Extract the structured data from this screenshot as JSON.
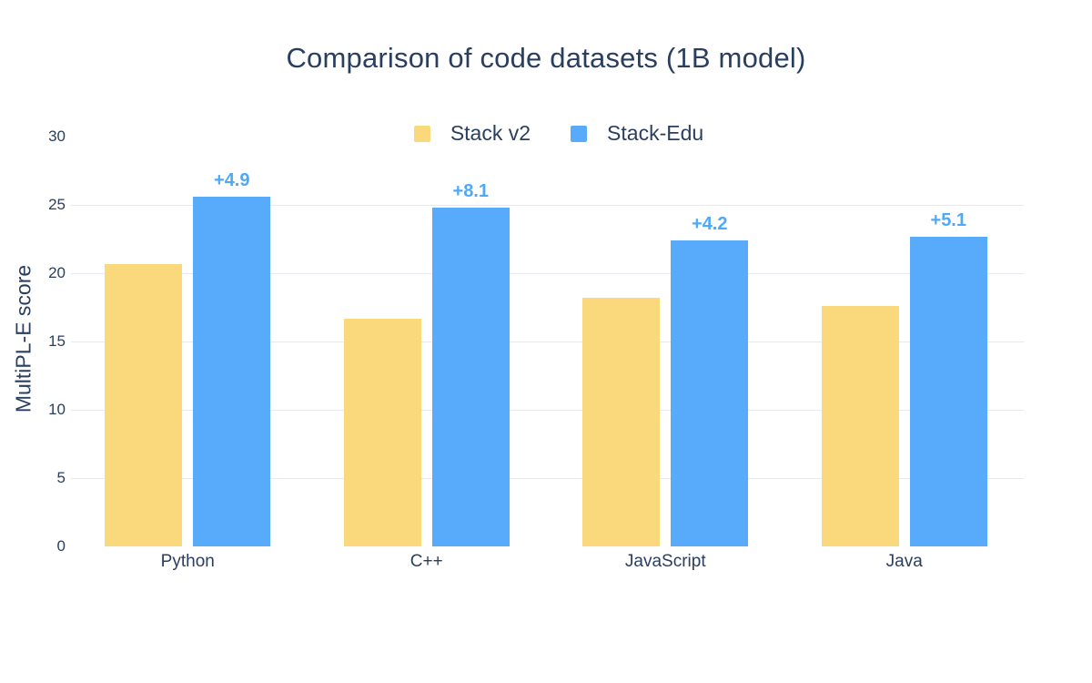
{
  "title": "Comparison of code datasets (1B model)",
  "legend": [
    {
      "label": "Stack v2",
      "color": "#FAD97D"
    },
    {
      "label": "Stack-Edu",
      "color": "#57ABFA"
    }
  ],
  "chart_data": {
    "type": "bar",
    "title": "Comparison of code datasets (1B model)",
    "categories": [
      "Python",
      "C++",
      "JavaScript",
      "Java"
    ],
    "series": [
      {
        "name": "Stack v2",
        "color": "#FAD97D",
        "values": [
          20.7,
          16.7,
          18.2,
          17.6
        ]
      },
      {
        "name": "Stack-Edu",
        "color": "#57ABFA",
        "values": [
          25.6,
          24.8,
          22.4,
          22.7
        ]
      }
    ],
    "annotations": {
      "on_series": "Stack-Edu",
      "labels": [
        "+4.9",
        "+8.1",
        "+4.2",
        "+5.1"
      ],
      "color": "#4FA8F8"
    },
    "xlabel": "",
    "ylabel": "MultiPL-E score",
    "ylim": [
      0,
      30
    ],
    "yticks": [
      0,
      5,
      10,
      15,
      20,
      25,
      30
    ],
    "gridlines_at": [
      5,
      10,
      15,
      20,
      25
    ],
    "grid": true,
    "legend_position": "top-center",
    "colors": {
      "text": "#2A3F5F",
      "grid": "#E7E9F0",
      "background": "#ffffff"
    }
  }
}
